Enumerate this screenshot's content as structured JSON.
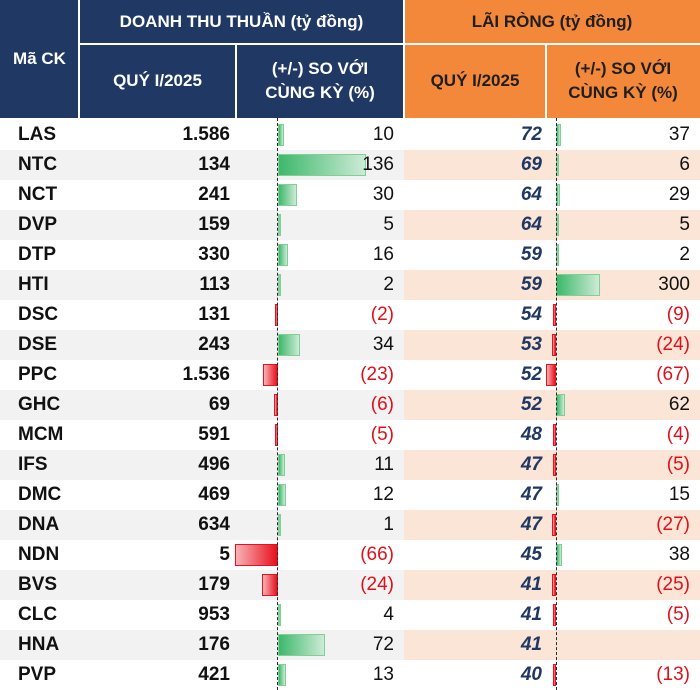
{
  "header": {
    "ticker": "Mã CK",
    "revenue_group": "DOANH THU THUẦN (tỷ đồng)",
    "revenue_q": "QUÝ I/2025",
    "revenue_chg": "(+/-) SO VỚI CÙNG KỲ (%)",
    "profit_group": "LÃI RÒNG (tỷ đồng)",
    "profit_q": "QUÝ I/2025",
    "profit_chg": "(+/-) SO VỚI CÙNG KỲ (%)"
  },
  "colors": {
    "navy": "#203864",
    "orange": "#f4883a",
    "positive_bar": "#3db86b",
    "negative_bar": "#e8111e",
    "negative_text": "#e0101a"
  },
  "rows": [
    {
      "ticker": "LAS",
      "revenue": "1.586",
      "rev_chg": "10",
      "rev_chg_val": 10,
      "profit": "72",
      "profit_chg": "37",
      "profit_chg_val": 37
    },
    {
      "ticker": "NTC",
      "revenue": "134",
      "rev_chg": "136",
      "rev_chg_val": 136,
      "profit": "69",
      "profit_chg": "6",
      "profit_chg_val": 6
    },
    {
      "ticker": "NCT",
      "revenue": "241",
      "rev_chg": "30",
      "rev_chg_val": 30,
      "profit": "64",
      "profit_chg": "29",
      "profit_chg_val": 29
    },
    {
      "ticker": "DVP",
      "revenue": "159",
      "rev_chg": "5",
      "rev_chg_val": 5,
      "profit": "64",
      "profit_chg": "5",
      "profit_chg_val": 5
    },
    {
      "ticker": "DTP",
      "revenue": "330",
      "rev_chg": "16",
      "rev_chg_val": 16,
      "profit": "59",
      "profit_chg": "2",
      "profit_chg_val": 2
    },
    {
      "ticker": "HTI",
      "revenue": "113",
      "rev_chg": "2",
      "rev_chg_val": 2,
      "profit": "59",
      "profit_chg": "300",
      "profit_chg_val": 300
    },
    {
      "ticker": "DSC",
      "revenue": "131",
      "rev_chg": "(2)",
      "rev_chg_val": -2,
      "profit": "54",
      "profit_chg": "(9)",
      "profit_chg_val": -9
    },
    {
      "ticker": "DSE",
      "revenue": "243",
      "rev_chg": "34",
      "rev_chg_val": 34,
      "profit": "53",
      "profit_chg": "(24)",
      "profit_chg_val": -24
    },
    {
      "ticker": "PPC",
      "revenue": "1.536",
      "rev_chg": "(23)",
      "rev_chg_val": -23,
      "profit": "52",
      "profit_chg": "(67)",
      "profit_chg_val": -67
    },
    {
      "ticker": "GHC",
      "revenue": "69",
      "rev_chg": "(6)",
      "rev_chg_val": -6,
      "profit": "52",
      "profit_chg": "62",
      "profit_chg_val": 62
    },
    {
      "ticker": "MCM",
      "revenue": "591",
      "rev_chg": "(5)",
      "rev_chg_val": -5,
      "profit": "48",
      "profit_chg": "(4)",
      "profit_chg_val": -4
    },
    {
      "ticker": "IFS",
      "revenue": "496",
      "rev_chg": "11",
      "rev_chg_val": 11,
      "profit": "47",
      "profit_chg": "(5)",
      "profit_chg_val": -5
    },
    {
      "ticker": "DMC",
      "revenue": "469",
      "rev_chg": "12",
      "rev_chg_val": 12,
      "profit": "47",
      "profit_chg": "15",
      "profit_chg_val": 15
    },
    {
      "ticker": "DNA",
      "revenue": "634",
      "rev_chg": "1",
      "rev_chg_val": 1,
      "profit": "47",
      "profit_chg": "(27)",
      "profit_chg_val": -27
    },
    {
      "ticker": "NDN",
      "revenue": "5",
      "rev_chg": "(66)",
      "rev_chg_val": -66,
      "profit": "45",
      "profit_chg": "38",
      "profit_chg_val": 38
    },
    {
      "ticker": "BVS",
      "revenue": "179",
      "rev_chg": "(24)",
      "rev_chg_val": -24,
      "profit": "41",
      "profit_chg": "(25)",
      "profit_chg_val": -25
    },
    {
      "ticker": "CLC",
      "revenue": "953",
      "rev_chg": "4",
      "rev_chg_val": 4,
      "profit": "41",
      "profit_chg": "(5)",
      "profit_chg_val": -5
    },
    {
      "ticker": "HNA",
      "revenue": "176",
      "rev_chg": "72",
      "rev_chg_val": 72,
      "profit": "41",
      "profit_chg": "",
      "profit_chg_val": null
    },
    {
      "ticker": "PVP",
      "revenue": "421",
      "rev_chg": "13",
      "rev_chg_val": 13,
      "profit": "40",
      "profit_chg": "(13)",
      "profit_chg_val": -13
    }
  ]
}
